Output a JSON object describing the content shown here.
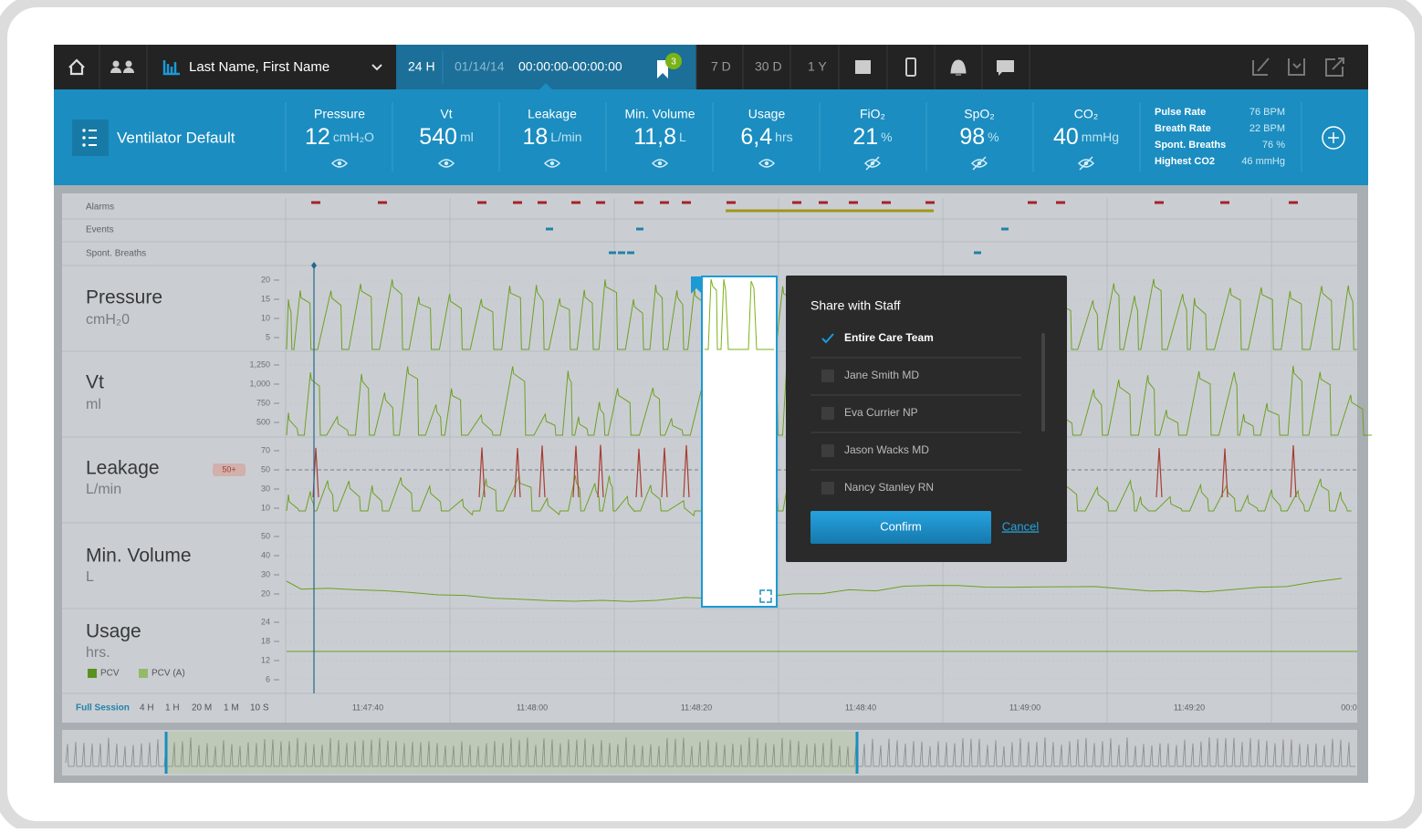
{
  "toolbar": {
    "patient": "Last Name, First Name",
    "range": "24 H",
    "date": "01/14/14",
    "time": "00:00:00-00:00:00",
    "badge": "3",
    "ranges": [
      "7 D",
      "30 D",
      "1 Y"
    ]
  },
  "metrics_bar": {
    "preset": "Ventilator Default",
    "metrics": [
      {
        "label": "Pressure",
        "value": "12",
        "unit": "cmH₂O"
      },
      {
        "label": "Vt",
        "value": "540",
        "unit": "ml"
      },
      {
        "label": "Leakage",
        "value": "18",
        "unit": "L/min"
      },
      {
        "label": "Min. Volume",
        "value": "11,8",
        "unit": "L"
      },
      {
        "label": "Usage",
        "value": "6,4",
        "unit": "hrs"
      },
      {
        "label": "FiO₂",
        "value": "21",
        "unit": "%"
      },
      {
        "label": "SpO₂",
        "value": "98",
        "unit": "%"
      },
      {
        "label": "CO₂",
        "value": "40",
        "unit": "mmHg"
      }
    ],
    "stats": [
      {
        "label": "Pulse Rate",
        "value": "76 BPM"
      },
      {
        "label": "Breath Rate",
        "value": "22 BPM"
      },
      {
        "label": "Spont. Breaths",
        "value": "76 %"
      },
      {
        "label": "Highest CO2",
        "value": "46 mmHg"
      }
    ]
  },
  "timeline": {
    "rows": [
      "Alarms",
      "Events",
      "Spont. Breaths"
    ],
    "charts": [
      {
        "label": "Pressure",
        "unit": "cmH₂0",
        "ticks": [
          "20",
          "15",
          "10",
          "5"
        ]
      },
      {
        "label": "Vt",
        "unit": "ml",
        "ticks": [
          "1,250",
          "1,000",
          "750",
          "500"
        ]
      },
      {
        "label": "Leakage",
        "unit": "L/min",
        "ticks": [
          "70",
          "50",
          "30",
          "10"
        ]
      },
      {
        "label": "Min. Volume",
        "unit": "L",
        "ticks": [
          "50",
          "40",
          "30",
          "20"
        ]
      },
      {
        "label": "Usage",
        "unit": "hrs.",
        "ticks": [
          "24",
          "18",
          "12",
          "6"
        ]
      }
    ],
    "leak_marker": "50+",
    "legend": [
      "PCV",
      "PCV (A)"
    ],
    "zoom": [
      "Full Session",
      "4 H",
      "1 H",
      "20 M",
      "1 M",
      "10 S"
    ],
    "times": [
      "11:47:40",
      "11:48:00",
      "11:48:20",
      "11:48:40",
      "11:49:00",
      "11:49:20",
      "00:0"
    ]
  },
  "dialog": {
    "title": "Share with Staff",
    "options": [
      {
        "name": "Entire Care Team",
        "checked": true
      },
      {
        "name": "Jane Smith MD",
        "checked": false
      },
      {
        "name": "Eva Currier NP",
        "checked": false
      },
      {
        "name": "Jason Wacks MD",
        "checked": false
      },
      {
        "name": "Nancy Stanley RN",
        "checked": false
      }
    ],
    "confirm": "Confirm",
    "cancel": "Cancel"
  }
}
